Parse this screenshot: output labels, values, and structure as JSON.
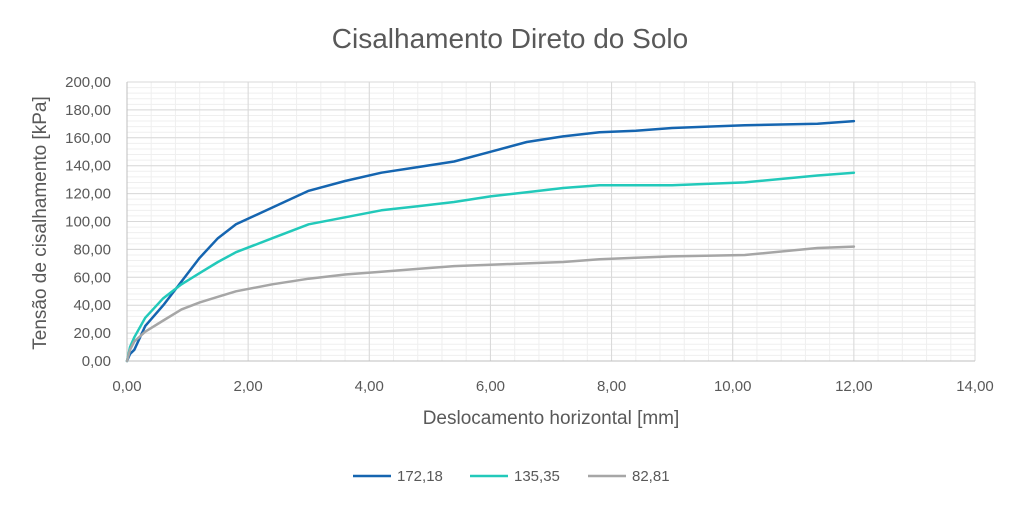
{
  "chart_data": {
    "type": "line",
    "title": "Cisalhamento Direto do Solo",
    "xlabel": "Deslocamento horizontal [mm]",
    "ylabel": "Tensão de cisalhamento [kPa]",
    "xlim": [
      0,
      14
    ],
    "ylim": [
      0,
      200
    ],
    "x_ticks": [
      "0,00",
      "2,00",
      "4,00",
      "6,00",
      "8,00",
      "10,00",
      "12,00",
      "14,00"
    ],
    "y_ticks": [
      "0,00",
      "20,00",
      "40,00",
      "60,00",
      "80,00",
      "100,00",
      "120,00",
      "140,00",
      "160,00",
      "180,00",
      "200,00"
    ],
    "grid": true,
    "legend_position": "bottom",
    "series": [
      {
        "name": "172,18",
        "color": "#1565b0",
        "points": [
          [
            0,
            0
          ],
          [
            0.05,
            5
          ],
          [
            0.12,
            8
          ],
          [
            0.3,
            25
          ],
          [
            0.6,
            40
          ],
          [
            0.9,
            57
          ],
          [
            1.2,
            74
          ],
          [
            1.5,
            88
          ],
          [
            1.8,
            98
          ],
          [
            2.4,
            110
          ],
          [
            3.0,
            122
          ],
          [
            3.6,
            129
          ],
          [
            4.2,
            135
          ],
          [
            4.8,
            139
          ],
          [
            5.4,
            143
          ],
          [
            6.0,
            150
          ],
          [
            6.6,
            157
          ],
          [
            7.2,
            161
          ],
          [
            7.8,
            164
          ],
          [
            8.4,
            165
          ],
          [
            9.0,
            167
          ],
          [
            10.2,
            169
          ],
          [
            11.4,
            170
          ],
          [
            12.0,
            172
          ]
        ]
      },
      {
        "name": "135,35",
        "color": "#22c9ba",
        "points": [
          [
            0,
            0
          ],
          [
            0.05,
            10
          ],
          [
            0.12,
            17
          ],
          [
            0.3,
            31
          ],
          [
            0.6,
            45
          ],
          [
            0.9,
            55
          ],
          [
            1.2,
            63
          ],
          [
            1.5,
            71
          ],
          [
            1.8,
            78
          ],
          [
            2.4,
            88
          ],
          [
            3.0,
            98
          ],
          [
            3.6,
            103
          ],
          [
            4.2,
            108
          ],
          [
            4.8,
            111
          ],
          [
            5.4,
            114
          ],
          [
            6.0,
            118
          ],
          [
            6.6,
            121
          ],
          [
            7.2,
            124
          ],
          [
            7.8,
            126
          ],
          [
            8.4,
            126
          ],
          [
            9.0,
            126
          ],
          [
            10.2,
            128
          ],
          [
            11.4,
            133
          ],
          [
            12.0,
            135
          ]
        ]
      },
      {
        "name": "82,81",
        "color": "#a6a6a6",
        "points": [
          [
            0,
            0
          ],
          [
            0.05,
            8
          ],
          [
            0.12,
            14
          ],
          [
            0.3,
            21
          ],
          [
            0.6,
            29
          ],
          [
            0.9,
            37
          ],
          [
            1.2,
            42
          ],
          [
            1.5,
            46
          ],
          [
            1.8,
            50
          ],
          [
            2.4,
            55
          ],
          [
            3.0,
            59
          ],
          [
            3.6,
            62
          ],
          [
            4.2,
            64
          ],
          [
            4.8,
            66
          ],
          [
            5.4,
            68
          ],
          [
            6.0,
            69
          ],
          [
            6.6,
            70
          ],
          [
            7.2,
            71
          ],
          [
            7.8,
            73
          ],
          [
            8.4,
            74
          ],
          [
            9.0,
            75
          ],
          [
            10.2,
            76
          ],
          [
            11.4,
            81
          ],
          [
            12.0,
            82
          ]
        ]
      }
    ]
  }
}
